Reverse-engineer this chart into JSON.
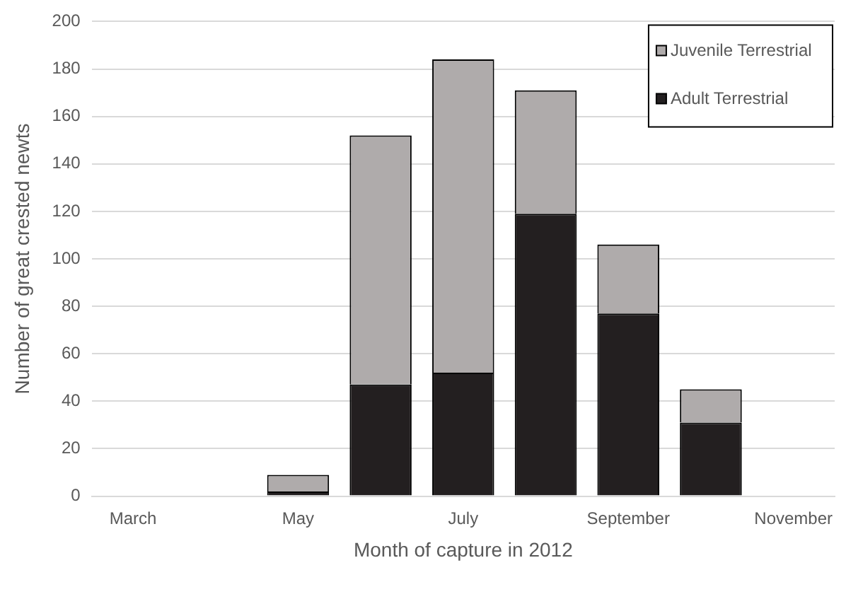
{
  "chart_data": {
    "type": "bar",
    "stacked": true,
    "xlabel": "Month of capture in 2012",
    "ylabel": "Number of great crested newts",
    "categories": [
      "March",
      null,
      "May",
      null,
      "July",
      null,
      "September",
      null,
      "November"
    ],
    "series": [
      {
        "name": "Adult Terrestrial",
        "color": "#231f20",
        "values": [
          0,
          0,
          2,
          47,
          52,
          119,
          77,
          31,
          0
        ]
      },
      {
        "name": "Juvenile Terrestrial",
        "color": "#afabab",
        "values": [
          0,
          0,
          7,
          105,
          132,
          52,
          29,
          14,
          0
        ]
      }
    ],
    "ylim": [
      0,
      200
    ],
    "yticks": [
      0,
      20,
      40,
      60,
      80,
      100,
      120,
      140,
      160,
      180,
      200
    ],
    "grid": "y",
    "legend": "top right"
  }
}
